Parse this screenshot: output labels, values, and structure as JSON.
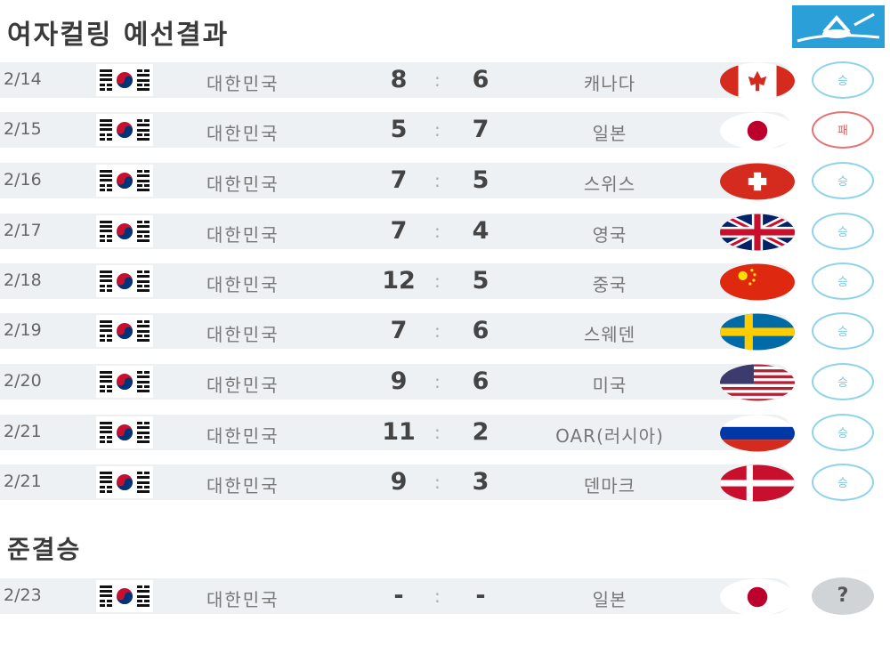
{
  "title": "여자컬링 예선결과",
  "semifinal_title": "준결승",
  "footer_left": "",
  "footer_right": "",
  "colors": {
    "band": "#eef1f3",
    "win_ring": "#8fd3ea",
    "loss_ring": "#e57373",
    "logo": "#2a9fd8"
  },
  "matches": [
    {
      "date": "2/14",
      "home": "대한민국",
      "score_home": "8",
      "score_away": "6",
      "opponent": "캐나다",
      "opponent_flag": "canada-flag",
      "result": "승",
      "result_type": "win"
    },
    {
      "date": "2/15",
      "home": "대한민국",
      "score_home": "5",
      "score_away": "7",
      "opponent": "일본",
      "opponent_flag": "japan-flag",
      "result": "패",
      "result_type": "loss"
    },
    {
      "date": "2/16",
      "home": "대한민국",
      "score_home": "7",
      "score_away": "5",
      "opponent": "스위스",
      "opponent_flag": "switzerland-flag",
      "result": "승",
      "result_type": "win"
    },
    {
      "date": "2/17",
      "home": "대한민국",
      "score_home": "7",
      "score_away": "4",
      "opponent": "영국",
      "opponent_flag": "uk-flag",
      "result": "승",
      "result_type": "win"
    },
    {
      "date": "2/18",
      "home": "대한민국",
      "score_home": "12",
      "score_away": "5",
      "opponent": "중국",
      "opponent_flag": "china-flag",
      "result": "승",
      "result_type": "win"
    },
    {
      "date": "2/19",
      "home": "대한민국",
      "score_home": "7",
      "score_away": "6",
      "opponent": "스웨덴",
      "opponent_flag": "sweden-flag",
      "result": "승",
      "result_type": "win"
    },
    {
      "date": "2/20",
      "home": "대한민국",
      "score_home": "9",
      "score_away": "6",
      "opponent": "미국",
      "opponent_flag": "usa-flag",
      "result": "승",
      "result_type": "win"
    },
    {
      "date": "2/21",
      "home": "대한민국",
      "score_home": "11",
      "score_away": "2",
      "opponent": "OAR(러시아)",
      "opponent_flag": "russia-flag",
      "result": "승",
      "result_type": "win"
    },
    {
      "date": "2/21",
      "home": "대한민국",
      "score_home": "9",
      "score_away": "3",
      "opponent": "덴마크",
      "opponent_flag": "denmark-flag",
      "result": "승",
      "result_type": "win"
    }
  ],
  "semifinal": {
    "date": "2/23",
    "home": "대한민국",
    "score_home": "-",
    "score_away": "-",
    "opponent": "일본",
    "opponent_flag": "japan-flag",
    "result": "?",
    "result_type": "pending"
  }
}
